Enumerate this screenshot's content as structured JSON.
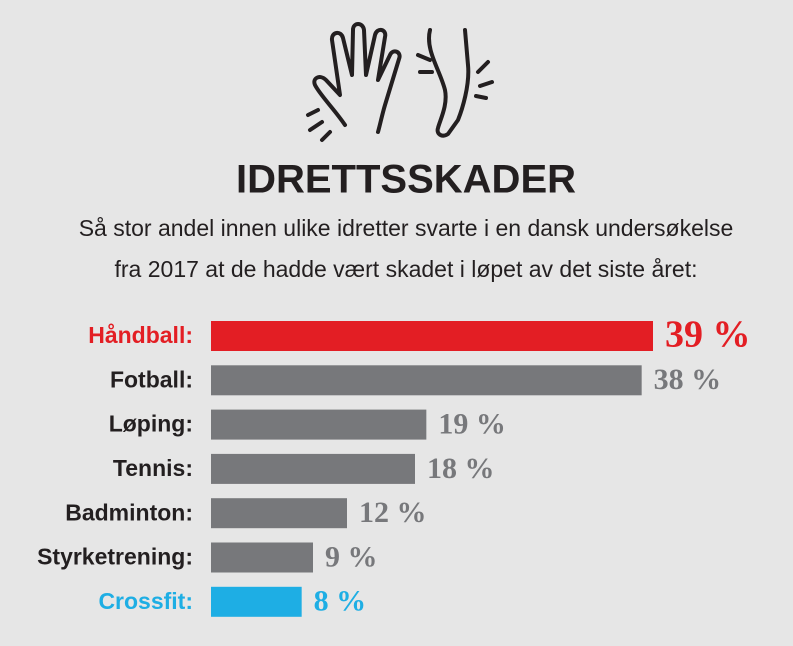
{
  "chart_data": {
    "type": "bar",
    "orientation": "horizontal",
    "title": "IDRETTSSKADER",
    "subtitle": [
      "Så stor andel innen ulike idretter svarte i en dansk undersøkelse",
      "fra 2017 at de hadde vært skadet i løpet av det siste året:"
    ],
    "categories": [
      "Håndball:",
      "Fotball:",
      "Løping:",
      "Tennis:",
      "Badminton:",
      "Styrketrening:",
      "Crossfit:"
    ],
    "values": [
      39,
      38,
      19,
      18,
      12,
      9,
      8
    ],
    "value_labels": [
      "39 %",
      "38 %",
      "19 %",
      "18 %",
      "12 %",
      "9 %",
      "8 %"
    ],
    "color": "#77787b",
    "colors": [
      "#e31e24",
      "#77787b",
      "#77787b",
      "#77787b",
      "#77787b",
      "#77787b",
      "#1eaee4"
    ]
  }
}
